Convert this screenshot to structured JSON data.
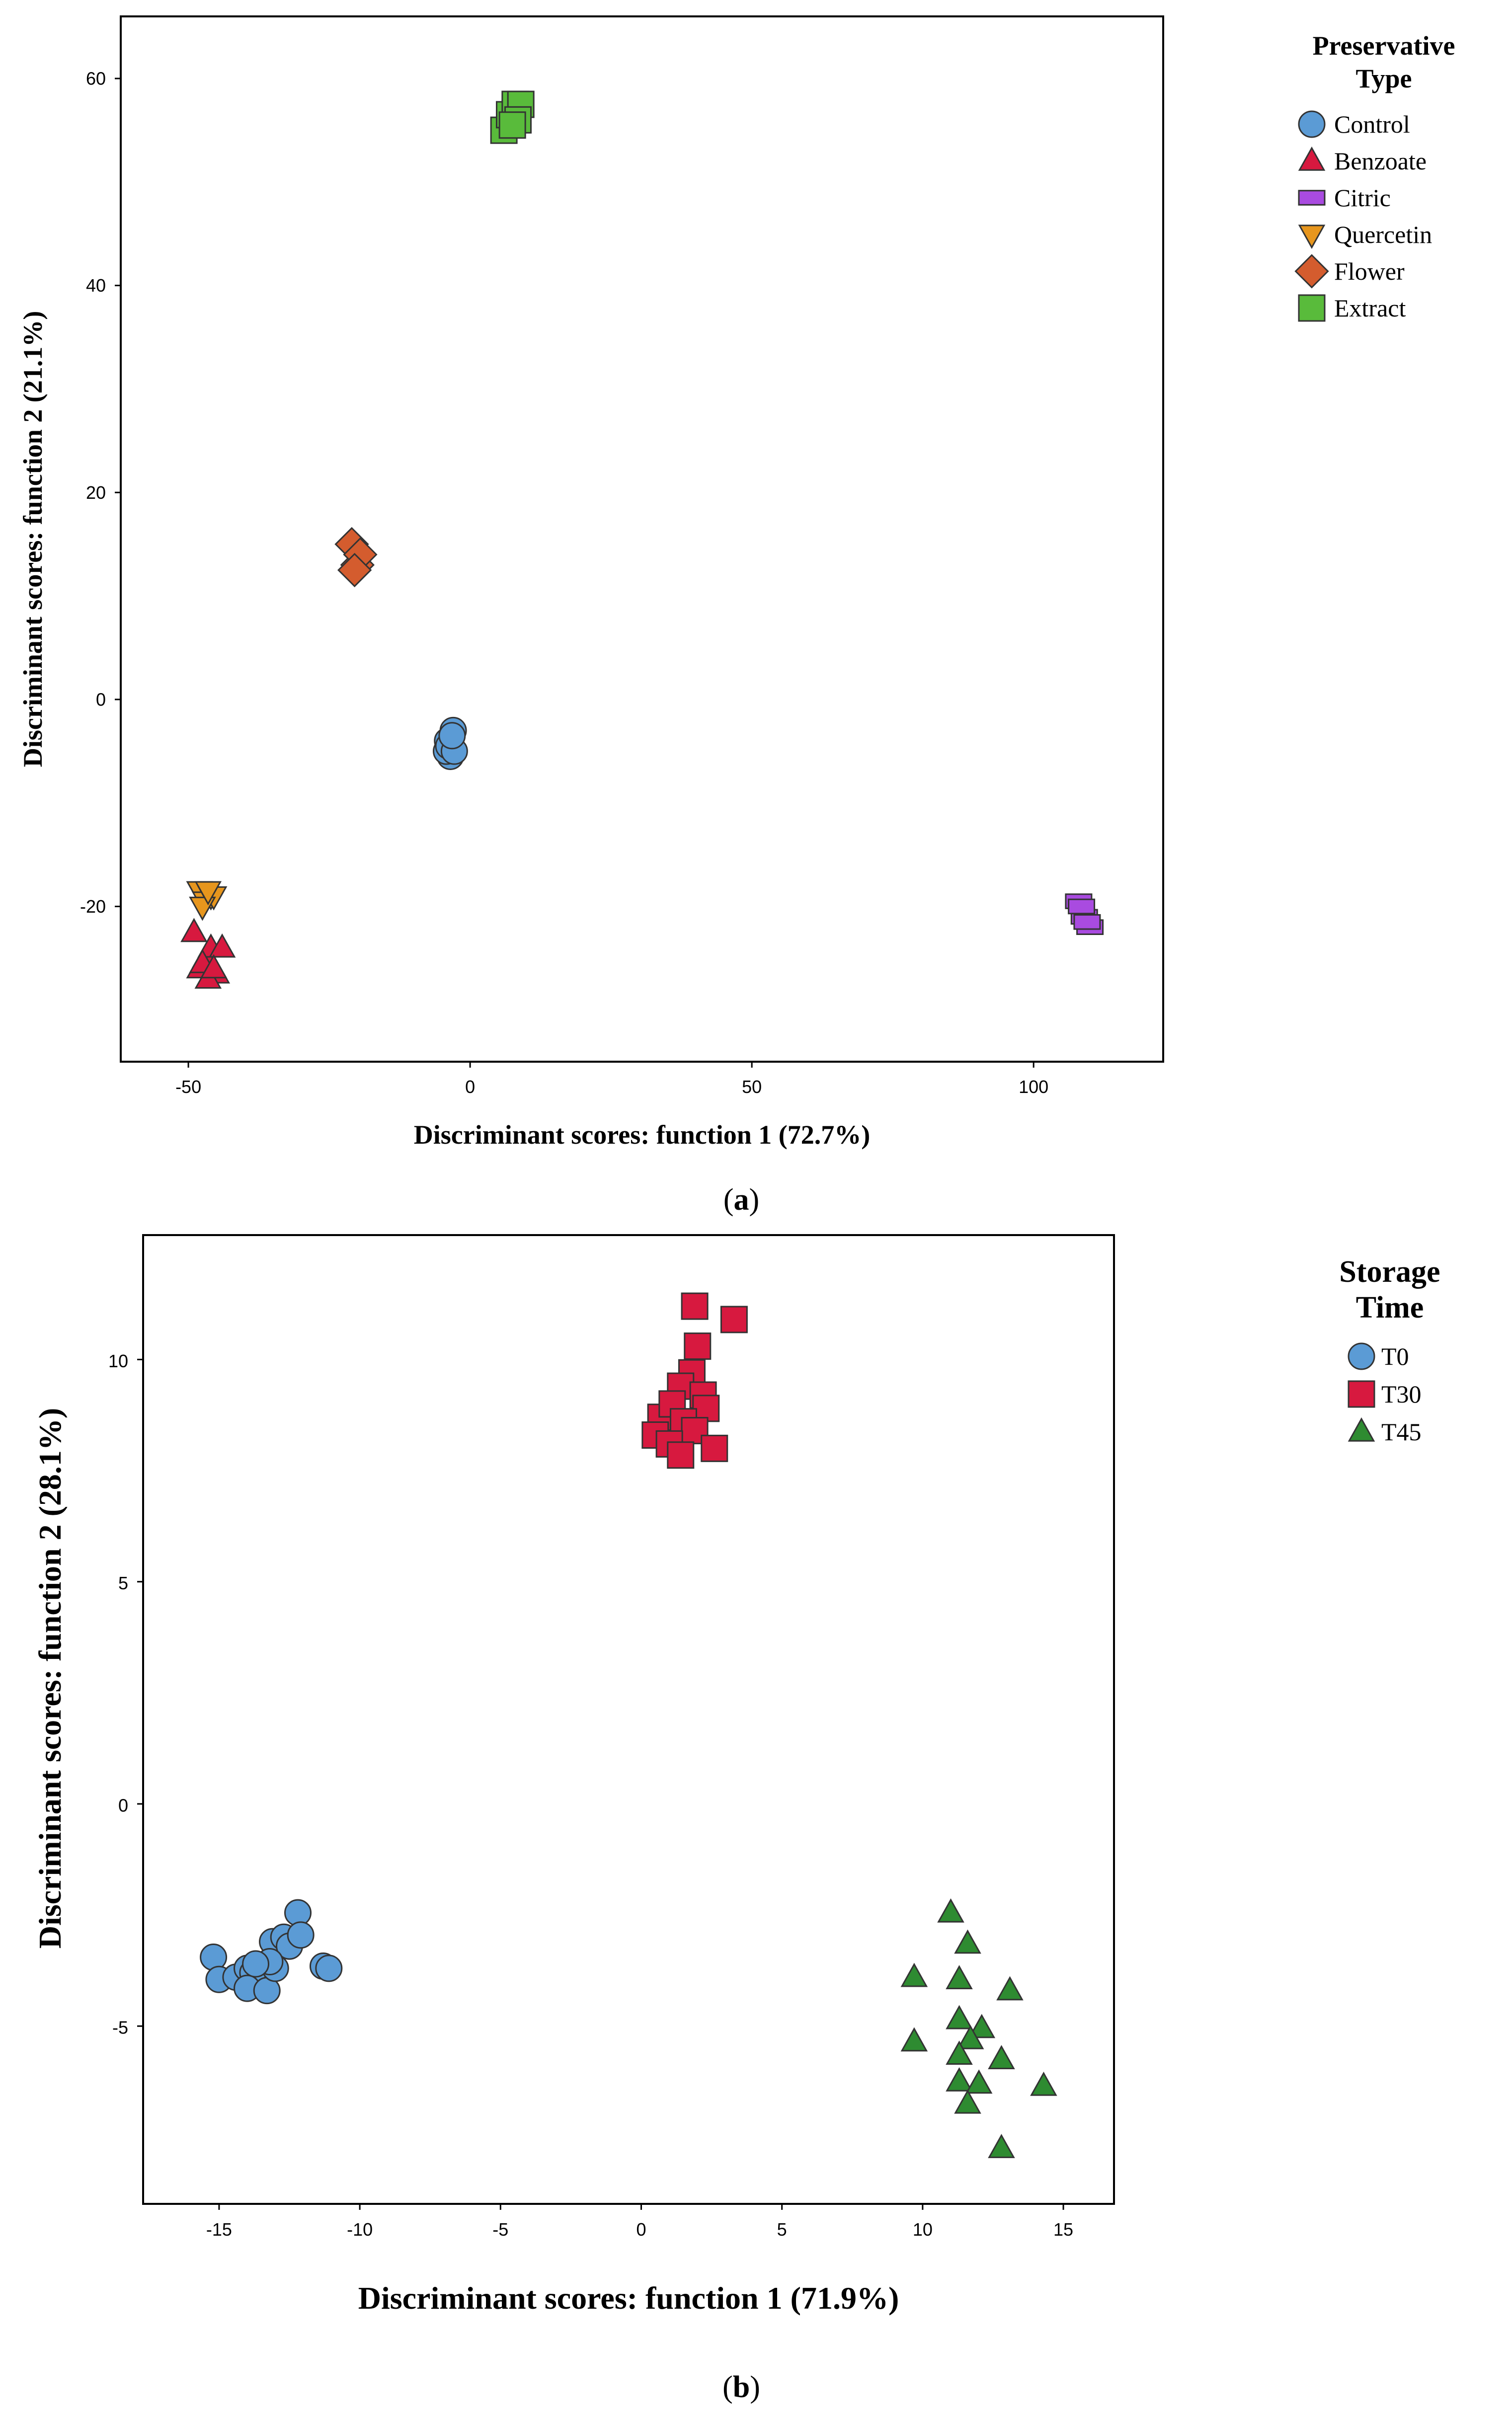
{
  "chart_data": [
    {
      "type": "scatter",
      "panel": "a",
      "xlabel": "Discriminant scores: function 1 (72.7%)",
      "ylabel": "Discriminant scores: function 2 (21.1%)",
      "xlim": [
        -62,
        123
      ],
      "ylim": [
        -35,
        66
      ],
      "xticks": [
        -50,
        0,
        50,
        100
      ],
      "yticks": [
        -20,
        0,
        20,
        40,
        60
      ],
      "grid": false,
      "legend": {
        "title_line1": "Preservative",
        "title_line2": "Type",
        "position": "top-right-outside"
      },
      "series": [
        {
          "name": "Control",
          "marker": "circle",
          "color": "#5b9bd5",
          "x": [
            -4,
            -3.5,
            -3,
            -4.2,
            -3.8,
            -2.8,
            -3.2
          ],
          "y": [
            -4,
            -5.5,
            -3,
            -5,
            -4.5,
            -5,
            -3.5
          ]
        },
        {
          "name": "Benzoate",
          "marker": "triangle",
          "color": "#d7193f",
          "x": [
            -49,
            -47,
            -46,
            -45,
            -48,
            -46.5,
            -44,
            -47.5,
            -45.5
          ],
          "y": [
            -22.5,
            -25,
            -24,
            -26.5,
            -26,
            -27,
            -24,
            -25.5,
            -26
          ]
        },
        {
          "name": "Citric",
          "marker": "rect",
          "color": "#a94be0",
          "x": [
            108,
            109,
            110,
            108.5,
            109.5
          ],
          "y": [
            -19.5,
            -21,
            -22,
            -20,
            -21.5
          ]
        },
        {
          "name": "Quercetin",
          "marker": "triangle-down",
          "color": "#e7961d",
          "x": [
            -48,
            -47,
            -46,
            -45.5,
            -47.5,
            -46.5
          ],
          "y": [
            -18.5,
            -19.5,
            -19,
            -19,
            -20,
            -18.5
          ]
        },
        {
          "name": "Flower",
          "marker": "diamond",
          "color": "#d45c2e",
          "x": [
            -21,
            -20,
            -19.5,
            -20.5
          ],
          "y": [
            15,
            13,
            14,
            12.5
          ]
        },
        {
          "name": "Extract",
          "marker": "square",
          "color": "#59bb3b",
          "x": [
            6,
            7,
            8,
            9,
            8.5,
            7.5
          ],
          "y": [
            55,
            56.5,
            57.5,
            57.5,
            56,
            55.5
          ]
        }
      ],
      "panel_label": "a"
    },
    {
      "type": "scatter",
      "panel": "b",
      "xlabel": "Discriminant scores: function 1 (71.9%)",
      "ylabel": "Discriminant scores: function 2 (28.1%)",
      "xlim": [
        -17.7,
        16.8
      ],
      "ylim": [
        -9,
        12.8
      ],
      "xticks": [
        -15,
        -10,
        -5,
        0,
        5,
        10,
        15
      ],
      "yticks": [
        -5,
        0,
        5,
        10
      ],
      "grid": false,
      "legend": {
        "title_line1": "Storage",
        "title_line2": "Time",
        "position": "top-right-outside"
      },
      "series": [
        {
          "name": "T0",
          "marker": "circle",
          "color": "#5b9bd5",
          "x": [
            -15.2,
            -15,
            -14.4,
            -14,
            -13.8,
            -14,
            -13.3,
            -13,
            -13.1,
            -12.7,
            -12.5,
            -12.2,
            -12.1,
            -13.2,
            -13.7,
            -11.3,
            -11.1
          ],
          "y": [
            -3.45,
            -3.95,
            -3.9,
            -3.7,
            -3.8,
            -4.15,
            -4.2,
            -3.7,
            -3.1,
            -3.0,
            -3.2,
            -2.45,
            -2.95,
            -3.55,
            -3.6,
            -3.65,
            -3.7
          ]
        },
        {
          "name": "T30",
          "marker": "square",
          "color": "#d7193f",
          "x": [
            1.9,
            3.3,
            2.0,
            1.8,
            1.4,
            2.2,
            2.3,
            0.7,
            1.1,
            1.5,
            0.5,
            1.9,
            1.0,
            2.6,
            1.4
          ],
          "y": [
            11.2,
            10.9,
            10.3,
            9.7,
            9.4,
            9.2,
            8.9,
            8.7,
            9.0,
            8.6,
            8.3,
            8.4,
            8.1,
            8.0,
            7.85
          ]
        },
        {
          "name": "T45",
          "marker": "triangle",
          "color": "#2e8b31",
          "x": [
            11.0,
            11.6,
            9.7,
            11.3,
            13.1,
            11.3,
            12.1,
            11.7,
            9.7,
            11.3,
            12.8,
            11.3,
            12.0,
            14.3,
            11.6,
            12.8
          ],
          "y": [
            -2.45,
            -3.15,
            -3.9,
            -3.95,
            -4.2,
            -4.85,
            -5.05,
            -5.3,
            -5.35,
            -5.65,
            -5.75,
            -6.25,
            -6.3,
            -6.35,
            -6.75,
            -7.75
          ]
        }
      ],
      "panel_label": "b"
    }
  ]
}
